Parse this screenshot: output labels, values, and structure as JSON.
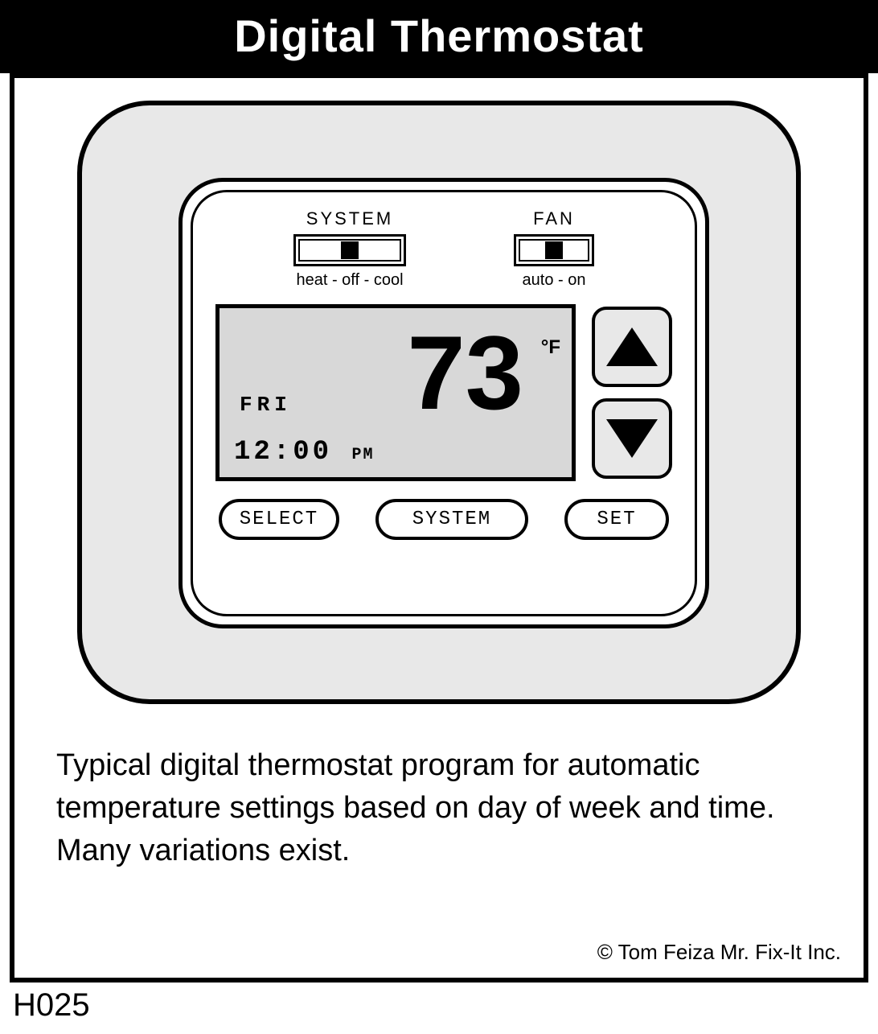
{
  "title": "Digital Thermostat",
  "switches": {
    "system": {
      "top_label": "SYSTEM",
      "bottom_label": "heat - off - cool"
    },
    "fan": {
      "top_label": "FAN",
      "bottom_label": "auto - on"
    }
  },
  "display": {
    "day": "FRI",
    "time": "12:00",
    "ampm": "PM",
    "temperature": "73",
    "unit": "°F"
  },
  "buttons": {
    "select": "SELECT",
    "system": "SYSTEM",
    "set": "SET"
  },
  "caption": "Typical digital thermostat program for automatic temperature settings based on day of week and time. Many variations exist.",
  "credit": "©  Tom Feiza Mr. Fix-It Inc.",
  "figure_id": "H025",
  "colors": {
    "header_bg": "#000000",
    "header_text": "#ffffff",
    "page_bg": "#ffffff",
    "thermostat_bg": "#e8e8e8",
    "lcd_bg": "#d8d8d8",
    "stroke": "#000000"
  }
}
